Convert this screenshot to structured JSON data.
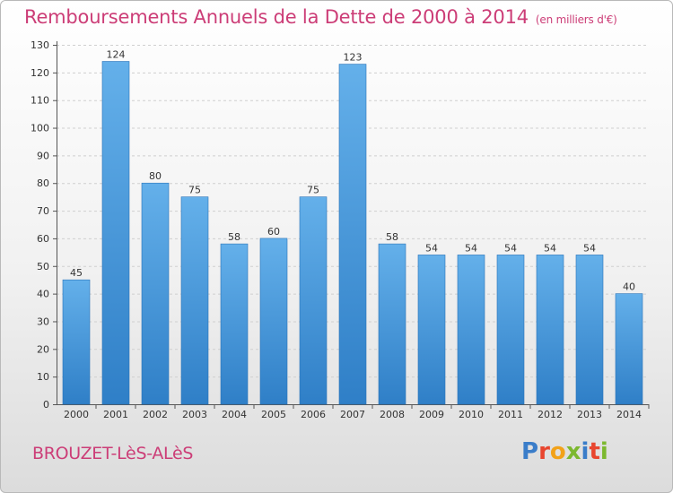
{
  "title": "Remboursements Annuels de la Dette de 2000 à 2014",
  "unit_note": "(en milliers d'€)",
  "commune": "BROUZET-LèS-ALèS",
  "logo": {
    "letters": [
      {
        "ch": "P",
        "color": "#3a7dc9"
      },
      {
        "ch": "r",
        "color": "#e8462f"
      },
      {
        "ch": "o",
        "color": "#f2a21a"
      },
      {
        "ch": "x",
        "color": "#7cb82f"
      },
      {
        "ch": "i",
        "color": "#3a7dc9"
      },
      {
        "ch": "t",
        "color": "#e8462f"
      },
      {
        "ch": "i",
        "color": "#7cb82f"
      }
    ]
  },
  "colors": {
    "title": "#cc3d77",
    "bar_top": "#64b0ea",
    "bar_bottom": "#2f7fc7",
    "grid": "#cfcfcf",
    "axis": "#555555"
  },
  "chart_data": {
    "type": "bar",
    "title": "Remboursements Annuels de la Dette de 2000 à 2014",
    "xlabel": "",
    "ylabel": "",
    "ylim": [
      0,
      130
    ],
    "yticks": [
      0,
      10,
      20,
      30,
      40,
      50,
      60,
      70,
      80,
      90,
      100,
      110,
      120,
      130
    ],
    "grid": true,
    "categories": [
      "2000",
      "2001",
      "2002",
      "2003",
      "2004",
      "2005",
      "2006",
      "2007",
      "2008",
      "2009",
      "2010",
      "2011",
      "2012",
      "2013",
      "2014"
    ],
    "values": [
      45,
      124,
      80,
      75,
      58,
      60,
      75,
      123,
      58,
      54,
      54,
      54,
      54,
      54,
      40
    ]
  }
}
